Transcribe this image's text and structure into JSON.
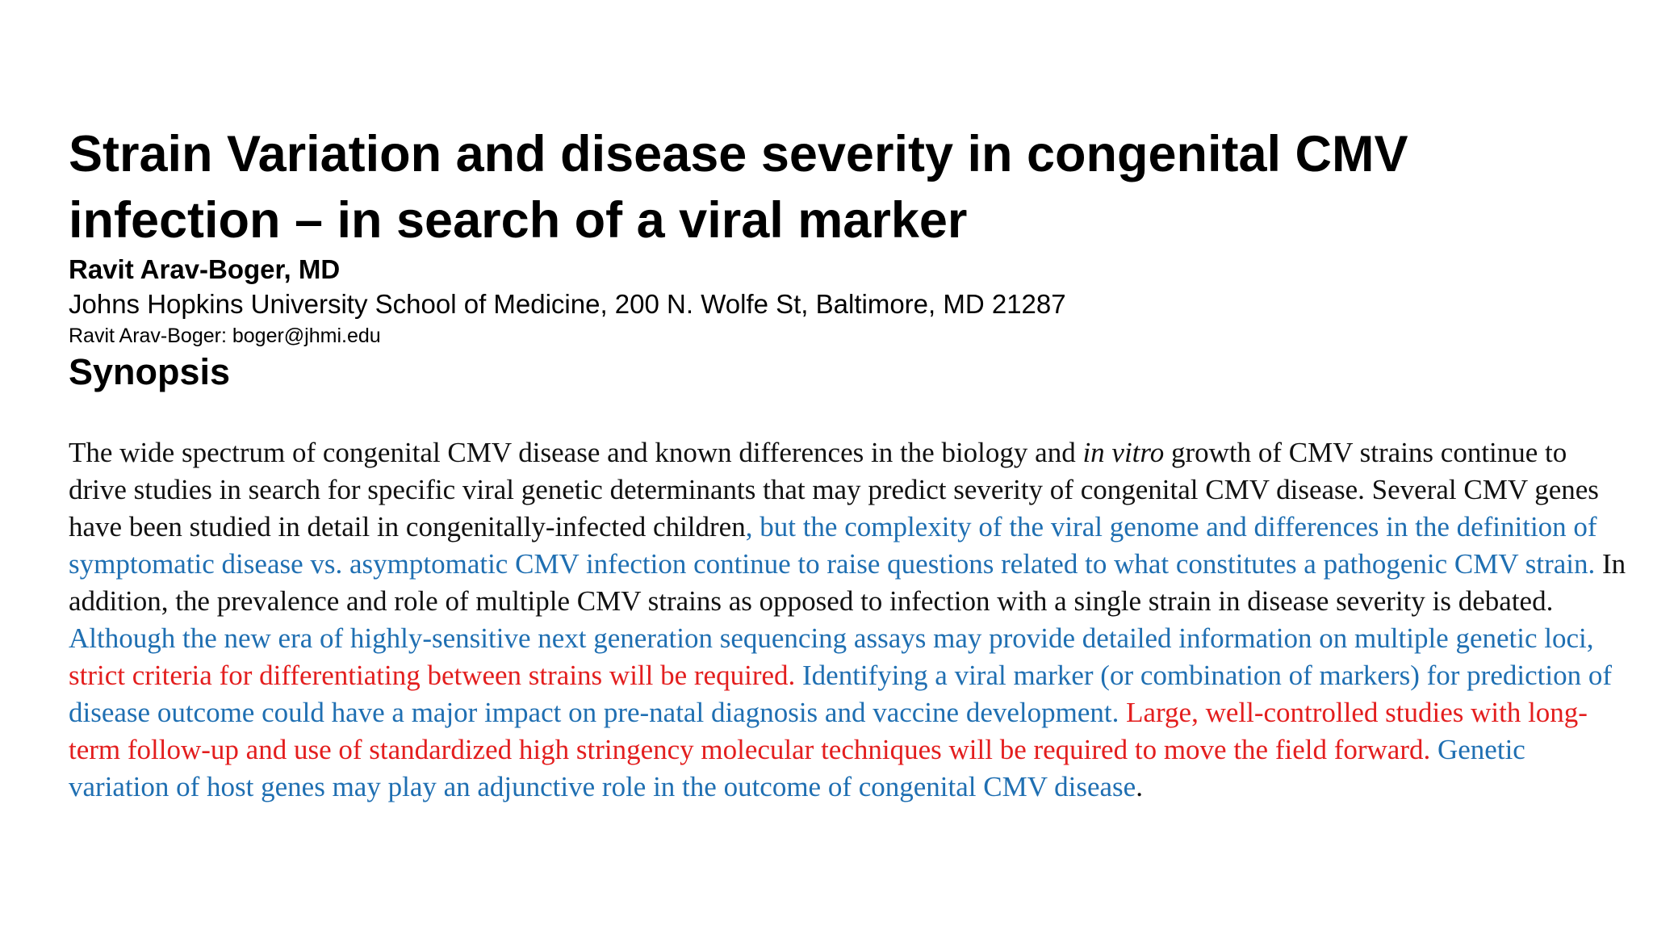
{
  "title": "Strain Variation and disease severity in congenital CMV infection – in search of a viral marker",
  "author": "Ravit Arav-Boger, MD",
  "affiliation": "Johns Hopkins University School of Medicine, 200 N. Wolfe St, Baltimore, MD 21287",
  "contact": "Ravit Arav-Boger: boger@jhmi.edu",
  "section_heading": "Synopsis",
  "colors": {
    "text": "#111111",
    "blue_highlight": "#1f6fb2",
    "red_highlight": "#e31e1e"
  },
  "synopsis_segments": [
    {
      "text": "The wide spectrum of congenital CMV disease and known differences in the biology and ",
      "style": "black"
    },
    {
      "text": "in vitro",
      "style": "italic"
    },
    {
      "text": " growth of CMV strains continue to drive studies in search for specific viral genetic determinants that may predict severity of congenital CMV disease. Several CMV genes have been studied in detail in congenitally-infected children",
      "style": "black"
    },
    {
      "text": ", but the complexity of the viral genome and differences in the definition of symptomatic disease vs. asymptomatic CMV infection continue to raise questions related to what constitutes a pathogenic CMV strain.",
      "style": "blue"
    },
    {
      "text": " In addition, the prevalence and role of multiple CMV strains as opposed to infection with a single strain in disease severity is debated. ",
      "style": "black"
    },
    {
      "text": "Although the new era of highly-sensitive next generation sequencing assays may provide detailed information on multiple genetic loci, ",
      "style": "blue"
    },
    {
      "text": "strict criteria for differentiating between strains will be required.",
      "style": "red"
    },
    {
      "text": " Identifying a viral marker (or combination of markers) for prediction of disease outcome could have a major impact on pre-natal diagnosis and vaccine development.",
      "style": "blue"
    },
    {
      "text": " Large, well-controlled studies with long-term follow-up and use of standardized high stringency molecular techniques will be required to move the field forward",
      "style": "red"
    },
    {
      "text": ".",
      "style": "red"
    },
    {
      "text": " Genetic variation of host genes may play an adjunctive role in the outcome of congenital CMV disease",
      "style": "blue"
    },
    {
      "text": ".",
      "style": "black"
    }
  ]
}
